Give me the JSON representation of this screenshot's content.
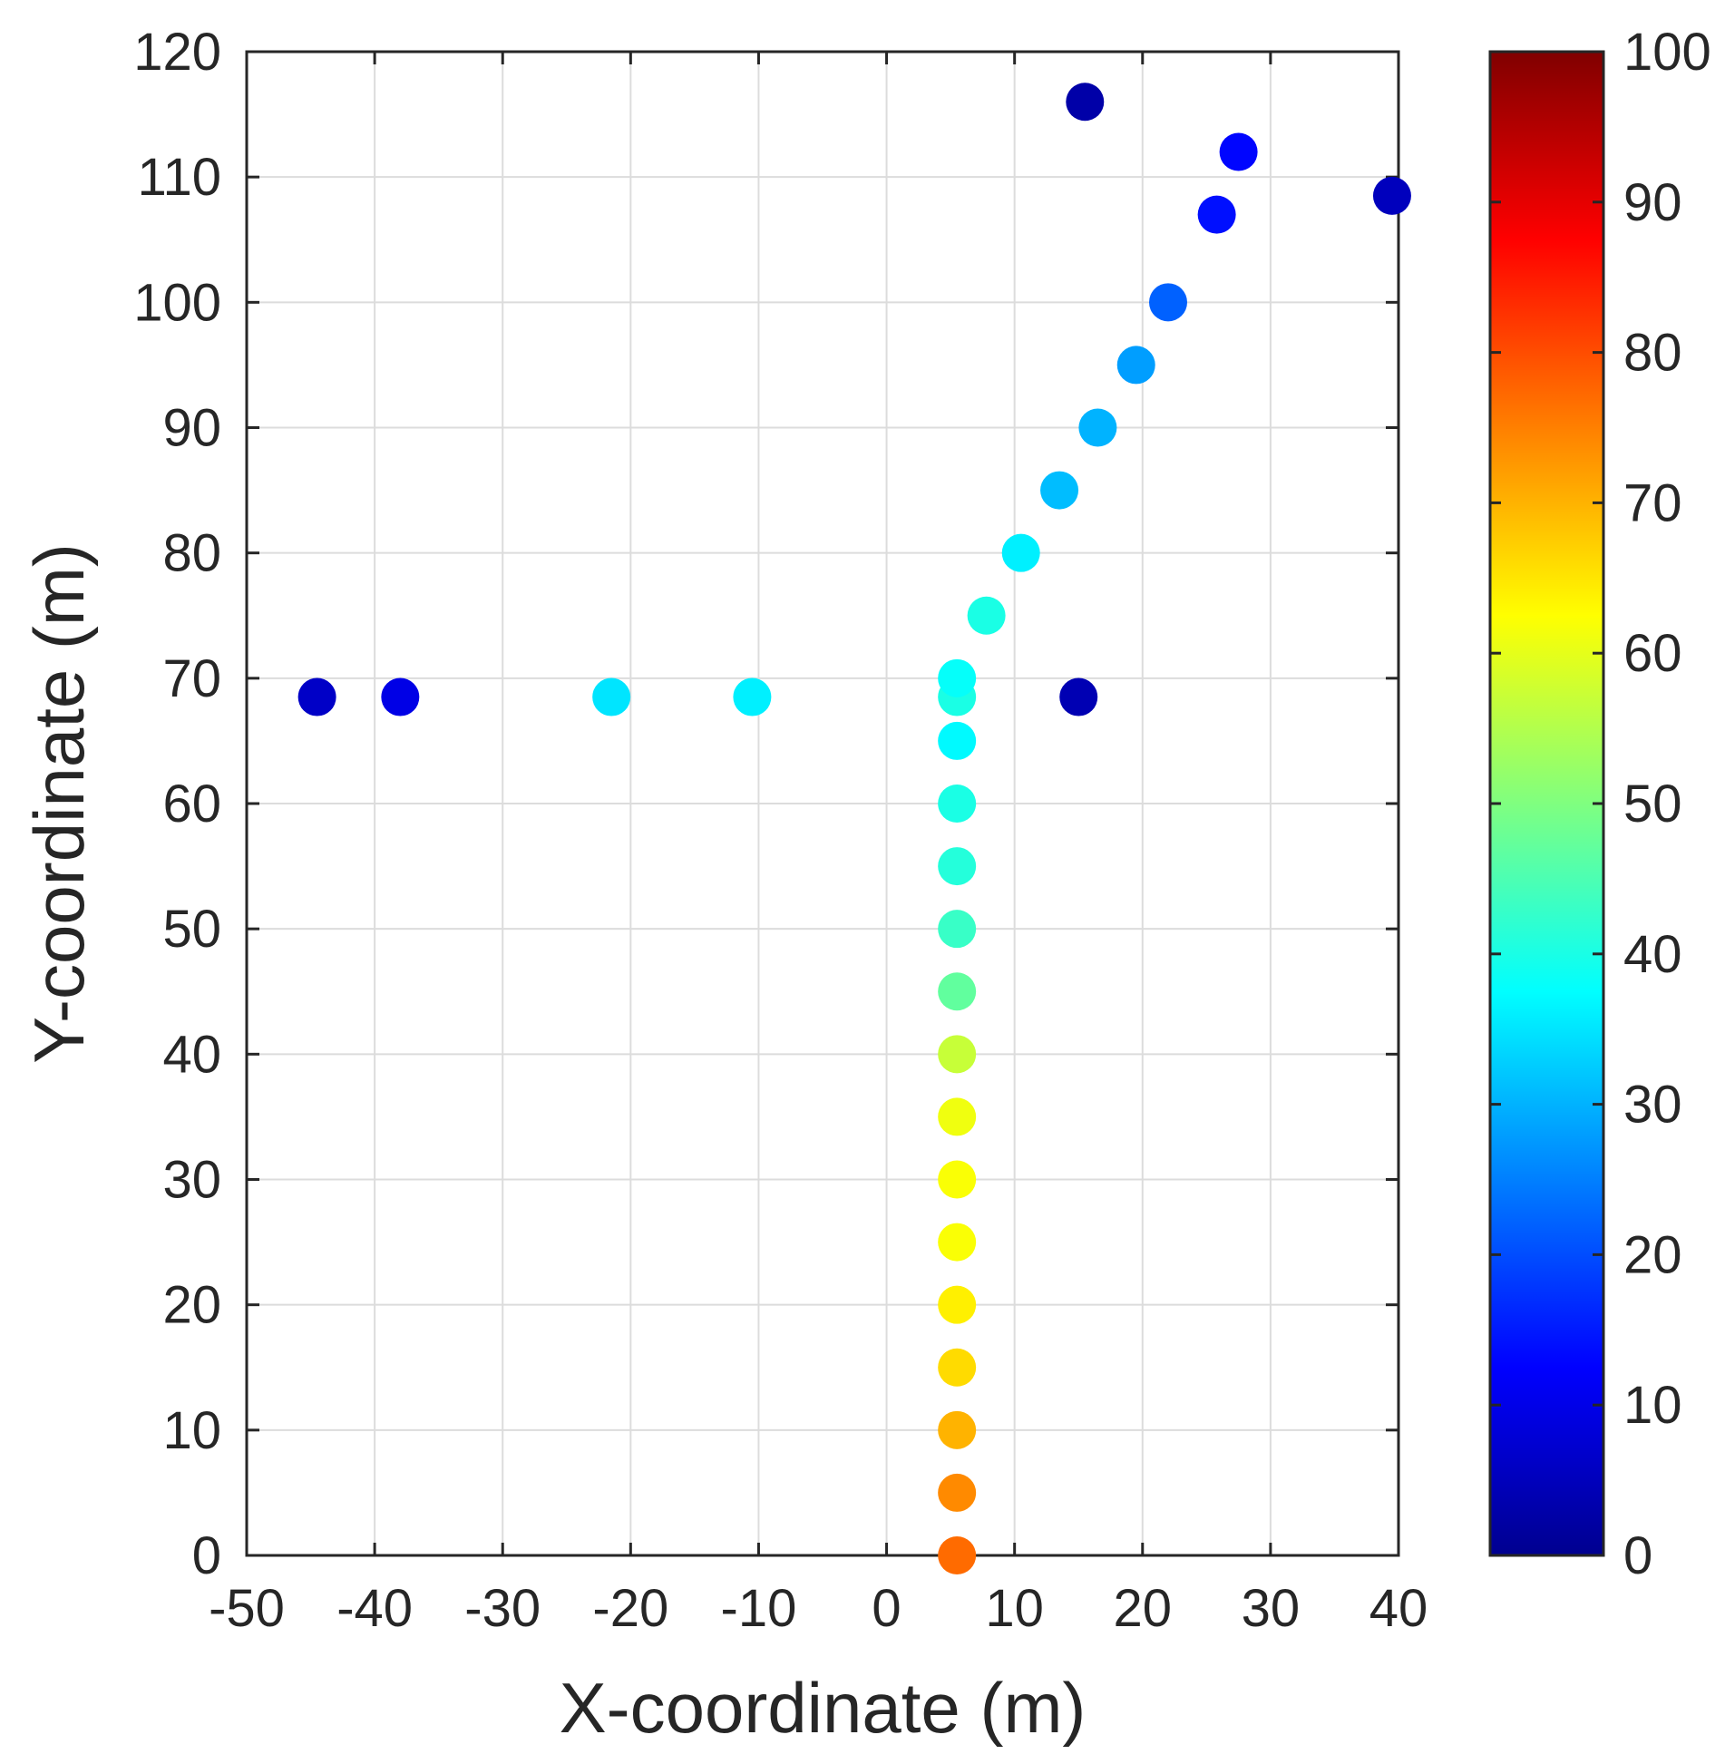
{
  "chart_data": {
    "type": "scatter",
    "xlabel": "X-coordinate (m)",
    "ylabel": "Y-coordinate (m)",
    "xlim": [
      -50,
      40
    ],
    "ylim": [
      0,
      120
    ],
    "grid": true,
    "x_ticks": [
      "-50",
      "-40",
      "-30",
      "-20",
      "-10",
      "0",
      "10",
      "20",
      "30",
      "40"
    ],
    "x_tick_values": [
      -50,
      -40,
      -30,
      -20,
      -10,
      0,
      10,
      20,
      30,
      40
    ],
    "y_ticks": [
      "0",
      "10",
      "20",
      "30",
      "40",
      "50",
      "60",
      "70",
      "80",
      "90",
      "100",
      "110",
      "120"
    ],
    "y_tick_values": [
      0,
      10,
      20,
      30,
      40,
      50,
      60,
      70,
      80,
      90,
      100,
      110,
      120
    ],
    "colorbar": {
      "colormap": "jet",
      "range": [
        0,
        100
      ],
      "ticks": [
        "0",
        "10",
        "20",
        "30",
        "40",
        "50",
        "60",
        "70",
        "80",
        "90",
        "100"
      ],
      "tick_values": [
        0,
        10,
        20,
        30,
        40,
        50,
        60,
        70,
        80,
        90,
        100
      ]
    },
    "points": [
      {
        "x": 5.5,
        "y": 0,
        "value": 77
      },
      {
        "x": 5.5,
        "y": 5,
        "value": 74
      },
      {
        "x": 5.5,
        "y": 10,
        "value": 70
      },
      {
        "x": 5.5,
        "y": 15,
        "value": 66
      },
      {
        "x": 5.5,
        "y": 20,
        "value": 64
      },
      {
        "x": 5.5,
        "y": 25,
        "value": 62
      },
      {
        "x": 5.5,
        "y": 30,
        "value": 62
      },
      {
        "x": 5.5,
        "y": 35,
        "value": 61
      },
      {
        "x": 5.5,
        "y": 40,
        "value": 57
      },
      {
        "x": 5.5,
        "y": 45,
        "value": 47
      },
      {
        "x": 5.5,
        "y": 50,
        "value": 43
      },
      {
        "x": 5.5,
        "y": 55,
        "value": 41
      },
      {
        "x": 5.5,
        "y": 60,
        "value": 40
      },
      {
        "x": 5.5,
        "y": 65,
        "value": 37
      },
      {
        "x": 5.5,
        "y": 68.5,
        "value": 40
      },
      {
        "x": 5.5,
        "y": 70,
        "value": 38
      },
      {
        "x": 7.8,
        "y": 75,
        "value": 40
      },
      {
        "x": 10.5,
        "y": 80,
        "value": 36
      },
      {
        "x": 13.5,
        "y": 85,
        "value": 31
      },
      {
        "x": 16.5,
        "y": 90,
        "value": 30
      },
      {
        "x": 19.5,
        "y": 95,
        "value": 28
      },
      {
        "x": 22,
        "y": 100,
        "value": 22
      },
      {
        "x": 25.8,
        "y": 107,
        "value": 14
      },
      {
        "x": 27.5,
        "y": 112,
        "value": 13
      },
      {
        "x": 39.5,
        "y": 108.5,
        "value": 6
      },
      {
        "x": 15.5,
        "y": 116,
        "value": 4
      },
      {
        "x": 15,
        "y": 68.5,
        "value": 5
      },
      {
        "x": -10.5,
        "y": 68.5,
        "value": 36
      },
      {
        "x": -21.5,
        "y": 68.5,
        "value": 35
      },
      {
        "x": -38,
        "y": 68.5,
        "value": 10
      },
      {
        "x": -44.5,
        "y": 68.5,
        "value": 7
      }
    ]
  }
}
